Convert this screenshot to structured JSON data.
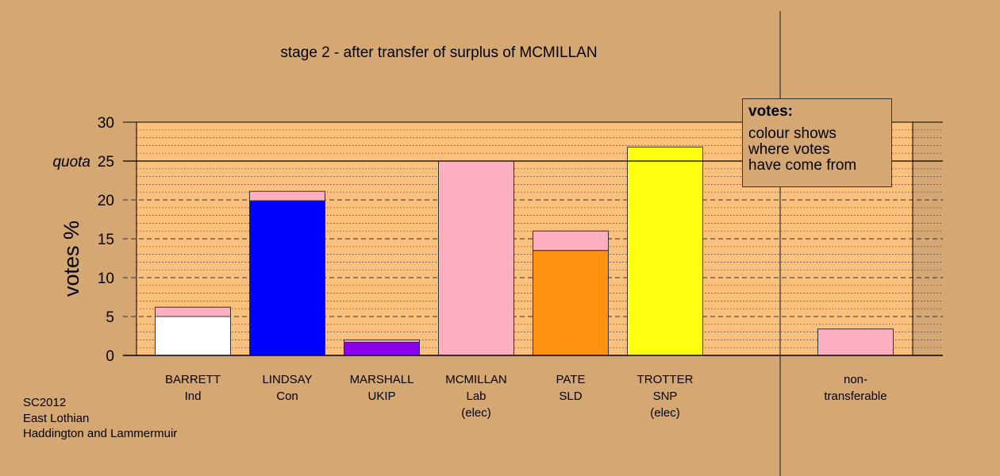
{
  "colors": {
    "background": "#d5a772",
    "plot_background": "#fbc07c",
    "grid": "#333333"
  },
  "chart_data": {
    "type": "bar",
    "stacked": true,
    "title": "stage 2 - after transfer of surplus of MCMILLAN",
    "ylabel": "votes %",
    "ylim": [
      0,
      30
    ],
    "yticks": [
      0,
      5,
      10,
      15,
      20,
      25,
      30
    ],
    "quota": {
      "label": "quota",
      "value": 25
    },
    "grid": true,
    "categories": [
      {
        "lines": [
          "BARRETT",
          "Ind"
        ],
        "base": 5.0,
        "transferred": 1.2,
        "color": "#ffffff"
      },
      {
        "lines": [
          "LINDSAY",
          "Con"
        ],
        "base": 19.9,
        "transferred": 1.2,
        "color": "#0000ff"
      },
      {
        "lines": [
          "MARSHALL",
          "UKIP"
        ],
        "base": 1.7,
        "transferred": 0.3,
        "color": "#8800ee"
      },
      {
        "lines": [
          "MCMILLAN",
          "Lab",
          "(elec)"
        ],
        "base": 0,
        "transferred": 25.0,
        "color": "#ffb0c0"
      },
      {
        "lines": [
          "PATE",
          "SLD"
        ],
        "base": 13.5,
        "transferred": 2.5,
        "color": "#ff9210"
      },
      {
        "lines": [
          "TROTTER",
          "SNP",
          "(elec)"
        ],
        "base": 26.8,
        "transferred": 0,
        "color": "#ffff10"
      }
    ],
    "non_transferable": {
      "lines": [
        "non-",
        "transferable"
      ],
      "value": 3.4,
      "color": "#ffb0c0"
    },
    "transfer_color": "#ffb0c0"
  },
  "legend": {
    "title": "votes:",
    "lines": [
      "colour shows",
      "where votes",
      "have come from"
    ]
  },
  "footer": {
    "election": "SC2012",
    "council": "East Lothian",
    "ward": "Haddington and Lammermuir"
  }
}
